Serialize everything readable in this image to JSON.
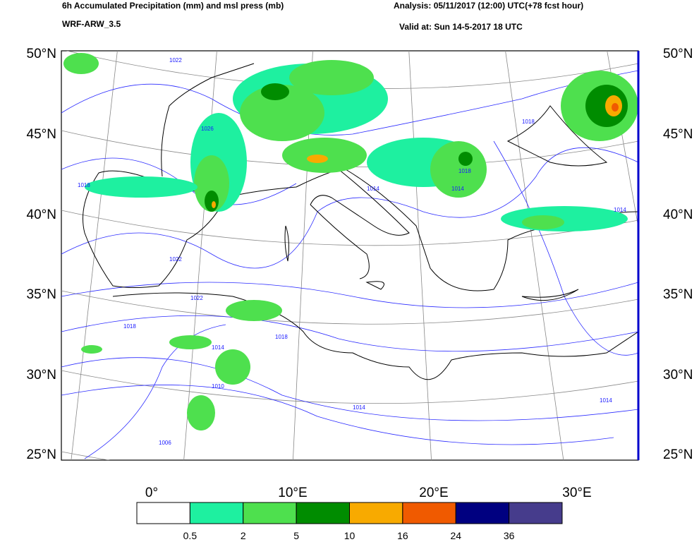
{
  "header": {
    "title": "6h Accumulated Precipitation (mm) and msl press (mb)",
    "model": "WRF-ARW_3.5",
    "analysis": "Analysis: 05/11/2017 (12:00) UTC(+78 fcst hour)",
    "valid": "Valid at: Sun 14-5-2017  18 UTC"
  },
  "map": {
    "lat_labels": [
      "50°N",
      "45°N",
      "40°N",
      "35°N",
      "30°N",
      "25°N"
    ],
    "lon_labels": [
      "0°",
      "10°E",
      "20°E",
      "30°E"
    ],
    "isobar_labels": [
      "1022",
      "1026",
      "1018",
      "1022",
      "1014",
      "1018",
      "1018",
      "1014",
      "1022",
      "1018",
      "1014",
      "1010",
      "1006",
      "1014",
      "1018",
      "1014",
      "1014"
    ]
  },
  "colorbar": {
    "labels": [
      "0.5",
      "2",
      "5",
      "10",
      "16",
      "24",
      "36"
    ],
    "colors": [
      "#ffffff",
      "#1ef0a0",
      "#4ee04e",
      "#008c00",
      "#f8aa00",
      "#f05a00",
      "#000080",
      "#463c8c"
    ]
  }
}
